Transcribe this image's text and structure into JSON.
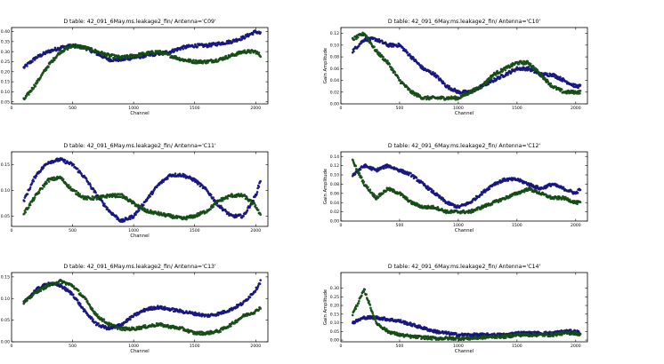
{
  "chart_data": [
    {
      "type": "scatter",
      "title": "D table: 42_091_6May.ms.leakage2_fin/      Antenna='C09'",
      "xlabel": "Channel",
      "ylabel": "",
      "xlim": [
        0,
        2100
      ],
      "ylim": [
        0.04,
        0.42
      ],
      "xticks": [
        "0",
        "500",
        "1000",
        "1500",
        "2000"
      ],
      "yticks": [
        "0.05",
        "0.10",
        "0.15",
        "0.20",
        "0.25",
        "0.30",
        "0.35",
        "0.40"
      ],
      "grid": false,
      "colors": [
        "#1c1c9a",
        "#1a5c1a"
      ],
      "series": [
        {
          "x": [
            100,
            200,
            300,
            400,
            500,
            600,
            700,
            800,
            900,
            1000,
            1100,
            1200,
            1300,
            1400,
            1500,
            1600,
            1700,
            1800,
            1900,
            2000,
            2040
          ],
          "y": [
            0.22,
            0.27,
            0.3,
            0.32,
            0.33,
            0.32,
            0.29,
            0.26,
            0.26,
            0.27,
            0.28,
            0.29,
            0.3,
            0.32,
            0.33,
            0.33,
            0.34,
            0.35,
            0.37,
            0.4,
            0.39
          ]
        },
        {
          "x": [
            100,
            200,
            300,
            400,
            500,
            600,
            700,
            800,
            900,
            1000,
            1100,
            1200,
            1300,
            1400,
            1500,
            1600,
            1700,
            1800,
            1900,
            2000,
            2040
          ],
          "y": [
            0.06,
            0.14,
            0.23,
            0.3,
            0.33,
            0.32,
            0.3,
            0.28,
            0.27,
            0.28,
            0.29,
            0.3,
            0.28,
            0.26,
            0.25,
            0.25,
            0.26,
            0.28,
            0.3,
            0.3,
            0.28
          ]
        }
      ]
    },
    {
      "type": "scatter",
      "title": "D table: 42_091_6May.ms.leakage2_fin/      Antenna='C10'",
      "xlabel": "Channel",
      "ylabel": "Gain Amplitude",
      "xlim": [
        0,
        2100
      ],
      "ylim": [
        0,
        0.13
      ],
      "xticks": [
        "0",
        "500",
        "1000",
        "1500",
        "2000"
      ],
      "yticks": [
        "0.00",
        "0.02",
        "0.04",
        "0.06",
        "0.08",
        "0.10",
        "0.12"
      ],
      "grid": false,
      "colors": [
        "#1c1c9a",
        "#1a5c1a"
      ],
      "series": [
        {
          "x": [
            100,
            200,
            300,
            400,
            500,
            600,
            700,
            800,
            900,
            1000,
            1100,
            1200,
            1300,
            1400,
            1500,
            1600,
            1700,
            1800,
            1900,
            2000,
            2040
          ],
          "y": [
            0.09,
            0.11,
            0.11,
            0.1,
            0.1,
            0.08,
            0.06,
            0.05,
            0.03,
            0.02,
            0.02,
            0.03,
            0.04,
            0.05,
            0.06,
            0.06,
            0.05,
            0.05,
            0.04,
            0.03,
            0.03
          ]
        },
        {
          "x": [
            100,
            200,
            300,
            400,
            500,
            600,
            700,
            800,
            900,
            1000,
            1100,
            1200,
            1300,
            1400,
            1500,
            1600,
            1700,
            1800,
            1900,
            2000,
            2040
          ],
          "y": [
            0.11,
            0.12,
            0.09,
            0.07,
            0.04,
            0.02,
            0.01,
            0.01,
            0.01,
            0.01,
            0.02,
            0.03,
            0.05,
            0.06,
            0.07,
            0.07,
            0.05,
            0.03,
            0.02,
            0.02,
            0.02
          ]
        }
      ]
    },
    {
      "type": "scatter",
      "title": "D table: 42_091_6May.ms.leakage2_fin/      Antenna='C11'",
      "xlabel": "Channel",
      "ylabel": "",
      "xlim": [
        0,
        2100
      ],
      "ylim": [
        0.03,
        0.175
      ],
      "xticks": [
        "0",
        "500",
        "1000",
        "1500",
        "2000"
      ],
      "yticks": [
        "0.05",
        "0.10",
        "0.15"
      ],
      "grid": false,
      "colors": [
        "#1c1c9a",
        "#1a5c1a"
      ],
      "series": [
        {
          "x": [
            100,
            200,
            300,
            400,
            500,
            600,
            700,
            800,
            900,
            1000,
            1100,
            1200,
            1300,
            1400,
            1500,
            1600,
            1700,
            1800,
            1900,
            2000,
            2040
          ],
          "y": [
            0.08,
            0.13,
            0.155,
            0.16,
            0.15,
            0.125,
            0.09,
            0.06,
            0.04,
            0.05,
            0.08,
            0.11,
            0.13,
            0.13,
            0.12,
            0.1,
            0.07,
            0.05,
            0.05,
            0.09,
            0.12
          ]
        },
        {
          "x": [
            100,
            200,
            300,
            400,
            500,
            600,
            700,
            800,
            900,
            1000,
            1100,
            1200,
            1300,
            1400,
            1500,
            1600,
            1700,
            1800,
            1900,
            2000,
            2040
          ],
          "y": [
            0.055,
            0.09,
            0.12,
            0.125,
            0.1,
            0.085,
            0.085,
            0.09,
            0.09,
            0.075,
            0.06,
            0.055,
            0.05,
            0.045,
            0.05,
            0.06,
            0.08,
            0.09,
            0.09,
            0.07,
            0.05
          ]
        }
      ]
    },
    {
      "type": "scatter",
      "title": "D table: 42_091_6May.ms.leakage2_fin/      Antenna='C12'",
      "xlabel": "Channel",
      "ylabel": "Gain Amplitude",
      "xlim": [
        0,
        2100
      ],
      "ylim": [
        0,
        0.15
      ],
      "xticks": [
        "0",
        "500",
        "1000",
        "1500",
        "2000"
      ],
      "yticks": [
        "0.00",
        "0.02",
        "0.04",
        "0.06",
        "0.08",
        "0.10",
        "0.12",
        "0.14"
      ],
      "grid": false,
      "colors": [
        "#1c1c9a",
        "#1a5c1a"
      ],
      "series": [
        {
          "x": [
            100,
            200,
            300,
            400,
            500,
            600,
            700,
            800,
            900,
            1000,
            1100,
            1200,
            1300,
            1400,
            1500,
            1600,
            1700,
            1800,
            1900,
            2000,
            2040
          ],
          "y": [
            0.1,
            0.12,
            0.11,
            0.12,
            0.11,
            0.1,
            0.08,
            0.06,
            0.04,
            0.03,
            0.04,
            0.06,
            0.08,
            0.09,
            0.09,
            0.08,
            0.07,
            0.08,
            0.07,
            0.06,
            0.07
          ]
        },
        {
          "x": [
            100,
            200,
            300,
            400,
            500,
            600,
            700,
            800,
            900,
            1000,
            1100,
            1200,
            1300,
            1400,
            1500,
            1600,
            1700,
            1800,
            1900,
            2000,
            2040
          ],
          "y": [
            0.13,
            0.08,
            0.05,
            0.07,
            0.06,
            0.04,
            0.03,
            0.03,
            0.02,
            0.02,
            0.02,
            0.03,
            0.04,
            0.05,
            0.06,
            0.07,
            0.06,
            0.05,
            0.05,
            0.04,
            0.04
          ]
        }
      ]
    },
    {
      "type": "scatter",
      "title": "D table: 42_091_6May.ms.leakage2_fin/      Antenna='C13'",
      "xlabel": "Channel",
      "ylabel": "",
      "xlim": [
        0,
        2100
      ],
      "ylim": [
        0,
        0.16
      ],
      "xticks": [
        "0",
        "500",
        "1000",
        "1500",
        "2000"
      ],
      "yticks": [
        "0.00",
        "0.05",
        "0.10",
        "0.15"
      ],
      "grid": false,
      "colors": [
        "#1c1c9a",
        "#1a5c1a"
      ],
      "series": [
        {
          "x": [
            100,
            200,
            300,
            400,
            500,
            600,
            700,
            800,
            900,
            1000,
            1100,
            1200,
            1300,
            1400,
            1500,
            1600,
            1700,
            1800,
            1900,
            2000,
            2040
          ],
          "y": [
            0.09,
            0.12,
            0.135,
            0.13,
            0.11,
            0.07,
            0.04,
            0.03,
            0.04,
            0.06,
            0.075,
            0.08,
            0.075,
            0.07,
            0.065,
            0.06,
            0.065,
            0.075,
            0.09,
            0.12,
            0.14
          ]
        },
        {
          "x": [
            100,
            200,
            300,
            400,
            500,
            600,
            700,
            800,
            900,
            1000,
            1100,
            1200,
            1300,
            1400,
            1500,
            1600,
            1700,
            1800,
            1900,
            2000,
            2040
          ],
          "y": [
            0.09,
            0.115,
            0.13,
            0.14,
            0.13,
            0.1,
            0.06,
            0.04,
            0.03,
            0.03,
            0.035,
            0.04,
            0.035,
            0.03,
            0.02,
            0.02,
            0.025,
            0.04,
            0.06,
            0.07,
            0.08
          ]
        }
      ]
    },
    {
      "type": "scatter",
      "title": "D table: 42_091_6May.ms.leakage2_fin/      Antenna='C14'",
      "xlabel": "Channel",
      "ylabel": "Gain Amplitude",
      "xlim": [
        0,
        2100
      ],
      "ylim": [
        -0.01,
        0.39
      ],
      "xticks": [
        "0",
        "500",
        "1000",
        "1500",
        "2000"
      ],
      "yticks": [
        "0.00",
        "0.05",
        "0.10",
        "0.15",
        "0.20",
        "0.25",
        "0.30"
      ],
      "grid": false,
      "colors": [
        "#1c1c9a",
        "#1a5c1a"
      ],
      "series": [
        {
          "x": [
            100,
            200,
            300,
            400,
            500,
            600,
            700,
            800,
            900,
            1000,
            1100,
            1200,
            1300,
            1400,
            1500,
            1600,
            1700,
            1800,
            1900,
            2000,
            2040
          ],
          "y": [
            0.1,
            0.13,
            0.13,
            0.12,
            0.11,
            0.09,
            0.07,
            0.05,
            0.04,
            0.03,
            0.03,
            0.03,
            0.03,
            0.03,
            0.04,
            0.04,
            0.04,
            0.04,
            0.05,
            0.05,
            0.04
          ]
        },
        {
          "x": [
            100,
            200,
            300,
            400,
            500,
            600,
            700,
            800,
            900,
            1000,
            1100,
            1200,
            1300,
            1400,
            1500,
            1600,
            1700,
            1800,
            1900,
            2000,
            2040
          ],
          "y": [
            0.15,
            0.29,
            0.1,
            0.05,
            0.03,
            0.02,
            0.015,
            0.01,
            0.01,
            0.01,
            0.01,
            0.015,
            0.02,
            0.02,
            0.03,
            0.03,
            0.03,
            0.03,
            0.04,
            0.04,
            0.03
          ]
        }
      ]
    }
  ]
}
